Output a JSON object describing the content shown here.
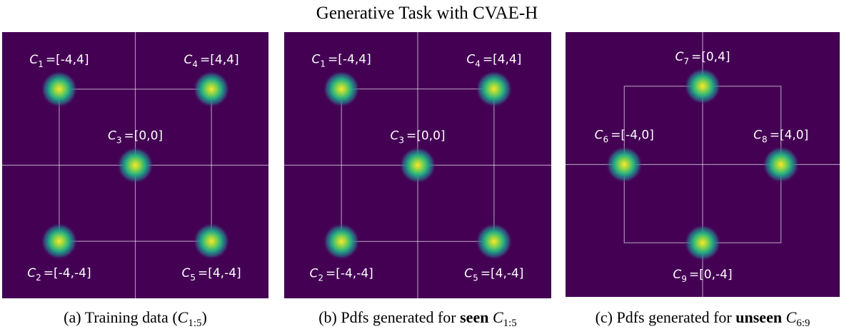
{
  "title": "Generative Task with CVAE-H",
  "panels": [
    {
      "caption": [
        {
          "text": "(a) Training data ("
        },
        {
          "text": "C",
          "style": "math"
        },
        {
          "text": "1:5",
          "style": "sub"
        },
        {
          "text": ")"
        }
      ],
      "points": [
        {
          "symbol": "C",
          "sub": "1",
          "label": "=[-4,4]",
          "x": -4,
          "y": 4
        },
        {
          "symbol": "C",
          "sub": "4",
          "label": "=[4,4]",
          "x": 4,
          "y": 4
        },
        {
          "symbol": "C",
          "sub": "3",
          "label": "=[0,0]",
          "x": 0,
          "y": 0
        },
        {
          "symbol": "C",
          "sub": "2",
          "label": "=[-4,-4]",
          "x": -4,
          "y": -4
        },
        {
          "symbol": "C",
          "sub": "5",
          "label": "=[4,-4]",
          "x": 4,
          "y": -4
        }
      ]
    },
    {
      "caption": [
        {
          "text": "(b) Pdfs generated for "
        },
        {
          "text": "seen",
          "style": "bold"
        },
        {
          "text": " "
        },
        {
          "text": "C",
          "style": "math"
        },
        {
          "text": "1:5",
          "style": "sub"
        }
      ],
      "points": [
        {
          "symbol": "C",
          "sub": "1",
          "label": "=[-4,4]",
          "x": -4,
          "y": 4
        },
        {
          "symbol": "C",
          "sub": "4",
          "label": "=[4,4]",
          "x": 4,
          "y": 4
        },
        {
          "symbol": "C",
          "sub": "3",
          "label": "=[0,0]",
          "x": 0,
          "y": 0
        },
        {
          "symbol": "C",
          "sub": "2",
          "label": "=[-4,-4]",
          "x": -4,
          "y": -4
        },
        {
          "symbol": "C",
          "sub": "5",
          "label": "=[4,-4]",
          "x": 4,
          "y": -4
        }
      ]
    },
    {
      "caption": [
        {
          "text": "(c) Pdfs generated for "
        },
        {
          "text": "unseen",
          "style": "bold"
        },
        {
          "text": " "
        },
        {
          "text": "C",
          "style": "math"
        },
        {
          "text": "6:9",
          "style": "sub"
        }
      ],
      "points": [
        {
          "symbol": "C",
          "sub": "7",
          "label": "=[0,4]",
          "x": 0,
          "y": 4
        },
        {
          "symbol": "C",
          "sub": "6",
          "label": "=[-4,0]",
          "x": -4,
          "y": 0
        },
        {
          "symbol": "C",
          "sub": "8",
          "label": "=[4,0]",
          "x": 4,
          "y": 0
        },
        {
          "symbol": "C",
          "sub": "9",
          "label": "=[0,-4]",
          "x": 0,
          "y": -4
        }
      ]
    }
  ]
}
